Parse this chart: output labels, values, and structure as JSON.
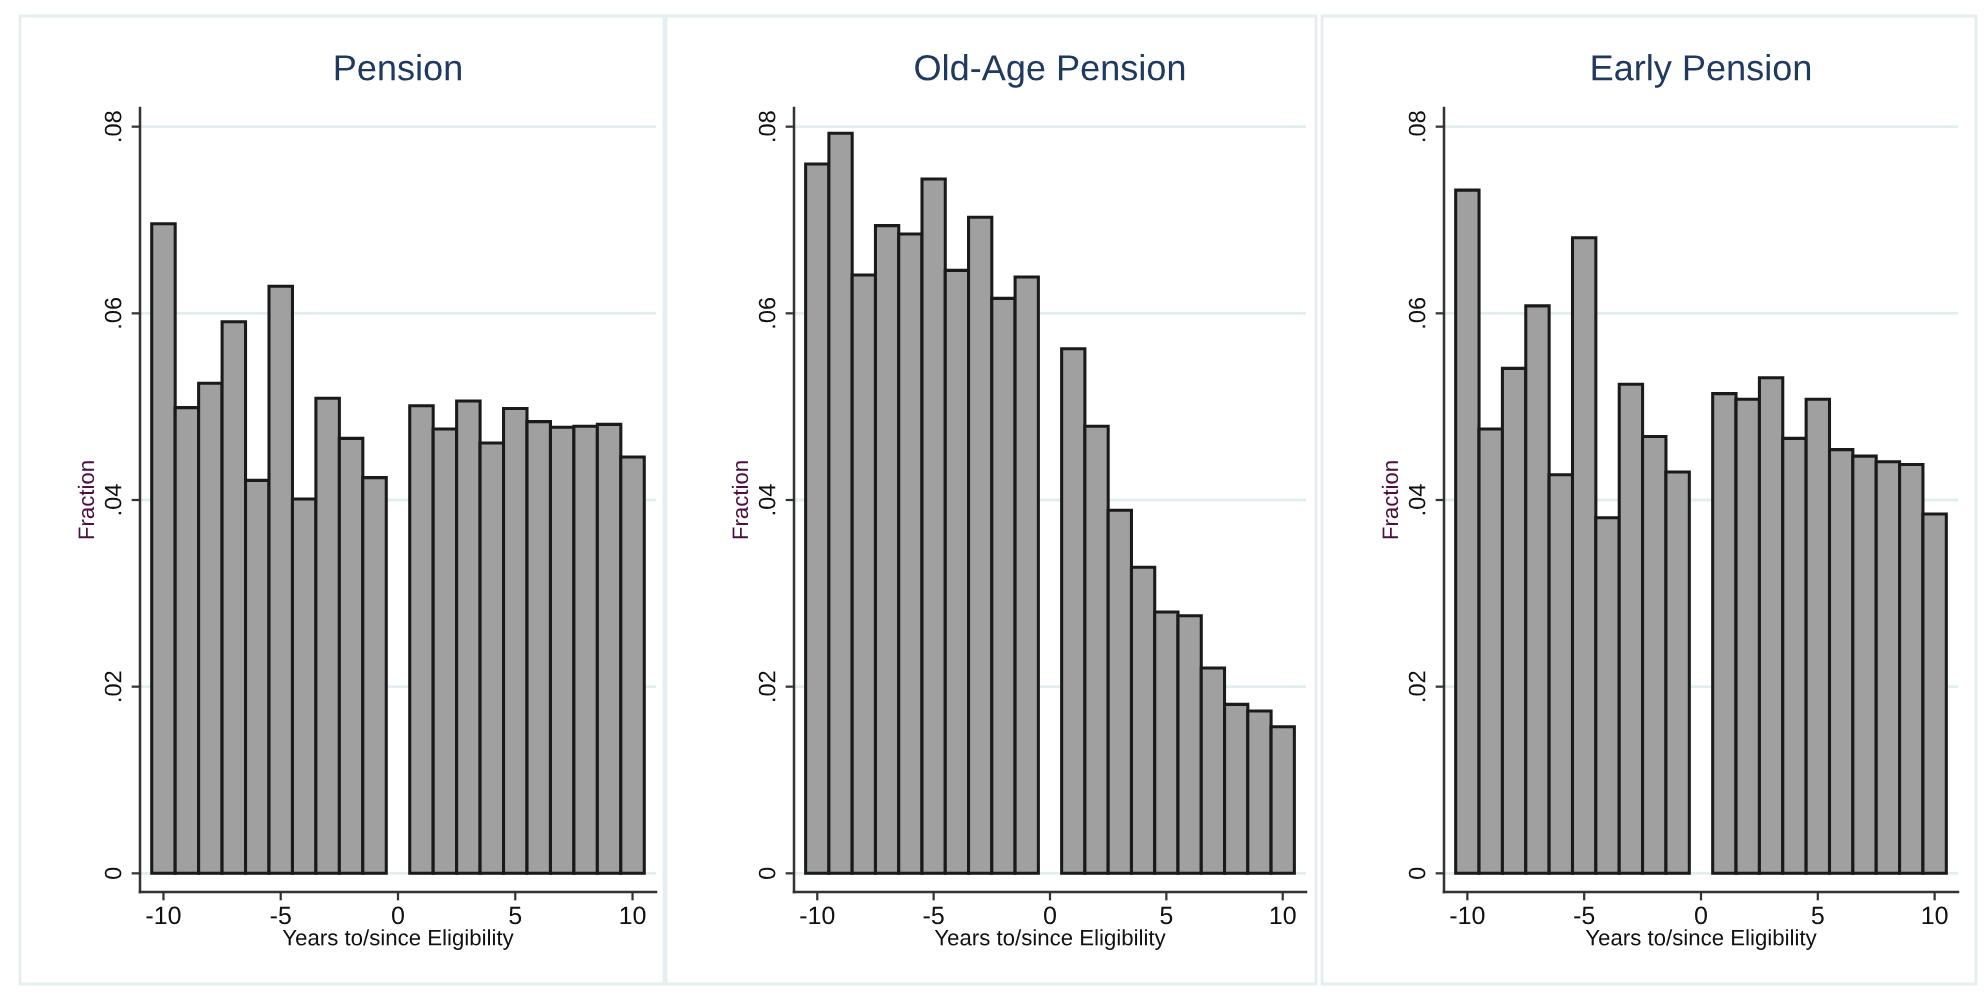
{
  "chart_data": [
    {
      "type": "histogram",
      "title": "Pension",
      "xlabel": "Years to/since Eligibility",
      "ylabel": "Fraction",
      "bins": [
        -10.5,
        -9.5,
        -8.5,
        -7.5,
        -6.5,
        -5.5,
        -4.5,
        -3.5,
        -2.5,
        -1.5,
        -0.5,
        0.5,
        1.5,
        2.5,
        3.5,
        4.5,
        5.5,
        6.5,
        7.5,
        8.5,
        9.5,
        10.5
      ],
      "values": [
        0.0696,
        0.0499,
        0.0525,
        0.0591,
        0.0421,
        0.0629,
        0.0401,
        0.0509,
        0.0466,
        0.0424,
        null,
        0.0501,
        0.0476,
        0.0506,
        0.0461,
        0.0498,
        0.0484,
        0.0478,
        0.0479,
        0.0481,
        0.0446
      ],
      "color": "#a0a0a0",
      "xlim": [
        -11,
        11
      ],
      "ylim": [
        -0.002,
        0.082
      ],
      "xticks": [
        -10,
        -5,
        0,
        5,
        10
      ],
      "yticks": [
        {
          "value": 0,
          "label": "0"
        },
        {
          "value": 0.02,
          "label": ".02"
        },
        {
          "value": 0.04,
          "label": ".04"
        },
        {
          "value": 0.06,
          "label": ".06"
        },
        {
          "value": 0.08,
          "label": ".08"
        }
      ],
      "grid": "y"
    },
    {
      "type": "histogram",
      "title": "Old-Age Pension",
      "xlabel": "Years to/since Eligibility",
      "ylabel": "Fraction",
      "bins": [
        -10.5,
        -9.5,
        -8.5,
        -7.5,
        -6.5,
        -5.5,
        -4.5,
        -3.5,
        -2.5,
        -1.5,
        -0.5,
        0.5,
        1.5,
        2.5,
        3.5,
        4.5,
        5.5,
        6.5,
        7.5,
        8.5,
        9.5,
        10.5
      ],
      "values": [
        0.076,
        0.0793,
        0.0641,
        0.0694,
        0.0685,
        0.0744,
        0.0646,
        0.0703,
        0.0616,
        0.0639,
        null,
        0.0562,
        0.0479,
        0.0389,
        0.0328,
        0.028,
        0.0276,
        0.022,
        0.0181,
        0.0174,
        0.0157
      ],
      "color": "#a0a0a0",
      "xlim": [
        -11,
        11
      ],
      "ylim": [
        -0.002,
        0.082
      ],
      "xticks": [
        -10,
        -5,
        0,
        5,
        10
      ],
      "yticks": [
        {
          "value": 0,
          "label": "0"
        },
        {
          "value": 0.02,
          "label": ".02"
        },
        {
          "value": 0.04,
          "label": ".04"
        },
        {
          "value": 0.06,
          "label": ".06"
        },
        {
          "value": 0.08,
          "label": ".08"
        }
      ],
      "grid": "y"
    },
    {
      "type": "histogram",
      "title": "Early Pension",
      "xlabel": "Years to/since Eligibility",
      "ylabel": "Fraction",
      "bins": [
        -10.5,
        -9.5,
        -8.5,
        -7.5,
        -6.5,
        -5.5,
        -4.5,
        -3.5,
        -2.5,
        -1.5,
        -0.5,
        0.5,
        1.5,
        2.5,
        3.5,
        4.5,
        5.5,
        6.5,
        7.5,
        8.5,
        9.5,
        10.5
      ],
      "values": [
        0.0732,
        0.0476,
        0.0541,
        0.0608,
        0.0427,
        0.0681,
        0.0381,
        0.0524,
        0.0468,
        0.043,
        null,
        0.0514,
        0.0508,
        0.0531,
        0.0466,
        0.0508,
        0.0454,
        0.0447,
        0.0441,
        0.0438,
        0.0385
      ],
      "color": "#a0a0a0",
      "xlim": [
        -11,
        11
      ],
      "ylim": [
        -0.002,
        0.082
      ],
      "xticks": [
        -10,
        -5,
        0,
        5,
        10
      ],
      "yticks": [
        {
          "value": 0,
          "label": "0"
        },
        {
          "value": 0.02,
          "label": ".02"
        },
        {
          "value": 0.04,
          "label": ".04"
        },
        {
          "value": 0.06,
          "label": ".06"
        },
        {
          "value": 0.08,
          "label": ".08"
        }
      ],
      "grid": "y"
    }
  ]
}
